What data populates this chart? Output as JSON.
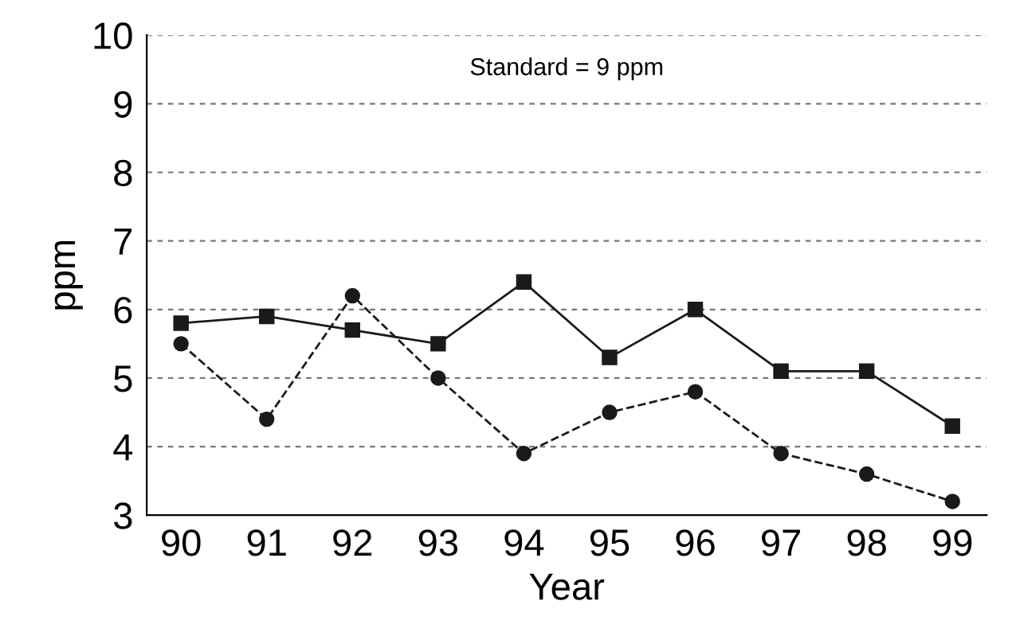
{
  "chart_data": {
    "type": "line",
    "xlabel": "Year",
    "ylabel": "ppm",
    "categories": [
      "90",
      "91",
      "92",
      "93",
      "94",
      "95",
      "96",
      "97",
      "98",
      "99"
    ],
    "series": [
      {
        "color": "#1a1a1a",
        "marker": "square",
        "line_style": "solid",
        "values": [
          5.8,
          5.9,
          5.7,
          5.5,
          6.4,
          5.3,
          6.0,
          5.1,
          5.1,
          4.3
        ]
      },
      {
        "color": "#1a1a1a",
        "marker": "circle",
        "line_style": "dashed",
        "values": [
          5.5,
          4.4,
          6.2,
          5.0,
          3.9,
          4.5,
          4.8,
          3.9,
          3.6,
          3.2
        ]
      }
    ],
    "ylim": [
      3,
      10
    ],
    "yticks": [
      3,
      4,
      5,
      6,
      7,
      8,
      9,
      10
    ],
    "grid": "y",
    "annotations": [
      "Standard = 9 ppm"
    ]
  }
}
